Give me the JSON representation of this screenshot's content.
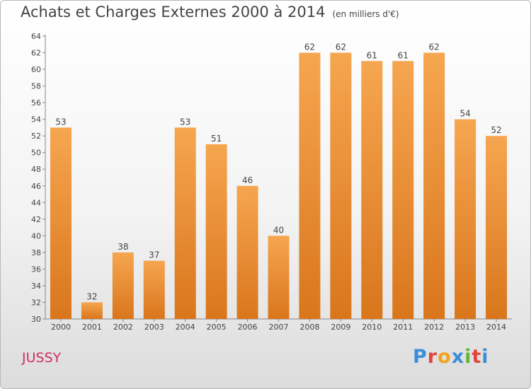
{
  "header": {
    "title": "Achats et Charges Externes 2000 à 2014",
    "unit": "(en milliers d'€)"
  },
  "footer": {
    "city": "JUSSY",
    "logo": "Proxiti"
  },
  "colors": {
    "bar_top": "#f6a650",
    "bar_bottom": "#d9761c",
    "city": "#d03060"
  },
  "chart_data": {
    "type": "bar",
    "title": "Achats et Charges Externes 2000 à 2014",
    "subtitle": "(en milliers d'€)",
    "categories": [
      "2000",
      "2001",
      "2002",
      "2003",
      "2004",
      "2005",
      "2006",
      "2007",
      "2008",
      "2009",
      "2010",
      "2011",
      "2012",
      "2013",
      "2014"
    ],
    "values": [
      53,
      32,
      38,
      37,
      53,
      51,
      46,
      40,
      62,
      62,
      61,
      61,
      62,
      54,
      52
    ],
    "ylim": [
      30,
      64
    ],
    "yticks": [
      30,
      32,
      34,
      36,
      38,
      40,
      42,
      44,
      46,
      48,
      50,
      52,
      54,
      56,
      58,
      60,
      62,
      64
    ],
    "grid": false,
    "legend": "none"
  }
}
